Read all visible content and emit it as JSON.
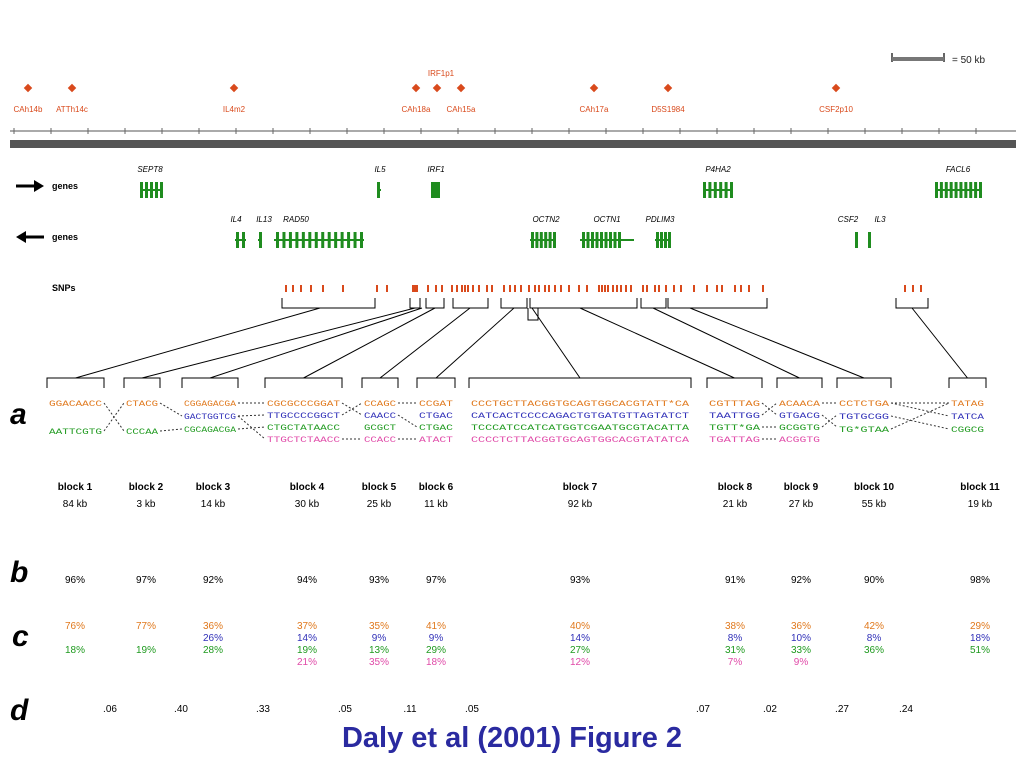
{
  "colors": {
    "marker": "#d94a1c",
    "gene": "#1f8c1f",
    "orange": "#e0781c",
    "blue": "#3030b8",
    "green": "#1f9a1f",
    "pink": "#e04aa8",
    "caption": "#2a2aa0"
  },
  "scale_label": "= 50 kb",
  "markers": [
    "CAh14b",
    "ATTh14c",
    "IL4m2",
    "IRF1p1",
    "CAh18a",
    "CAh15a",
    "CAh17a",
    "D5S1984",
    "CSF2p10"
  ],
  "track_labels": {
    "genes_forward": "genes",
    "genes_reverse": "genes",
    "snps": "SNPs"
  },
  "genes_forward": [
    "SEPT8",
    "IL5",
    "IRF1",
    "P4HA2",
    "FACL6"
  ],
  "genes_reverse": [
    "IL4",
    "IL13",
    "RAD50",
    "OCTN2",
    "OCTN1",
    "PDLIM3",
    "CSF2",
    "IL3"
  ],
  "panel_labels": [
    "a",
    "b",
    "c",
    "d"
  ],
  "blocks": [
    {
      "name": "block 1",
      "size": "84 kb",
      "b": "96%",
      "c": [
        "76%",
        "",
        "18%",
        ""
      ],
      "seqs": [
        [
          "GGACAACC",
          "orange"
        ],
        [
          "AATTCGTG",
          "green"
        ]
      ]
    },
    {
      "name": "block 2",
      "size": "3 kb",
      "b": "97%",
      "c": [
        "77%",
        "",
        "19%",
        ""
      ],
      "seqs": [
        [
          "CTACG",
          "orange"
        ],
        [
          "CCCAA",
          "green"
        ]
      ]
    },
    {
      "name": "block 3",
      "size": "14 kb",
      "b": "92%",
      "c": [
        "36%",
        "26%",
        "28%",
        ""
      ],
      "seqs": [
        [
          "CGGAGACGA",
          "orange"
        ],
        [
          "GACTGGTCG",
          "blue"
        ],
        [
          "CGCAGACGA",
          "green"
        ]
      ]
    },
    {
      "name": "block 4",
      "size": "30 kb",
      "b": "94%",
      "c": [
        "37%",
        "14%",
        "19%",
        "21%"
      ],
      "seqs": [
        [
          "CGCGCCCGGAT",
          "orange"
        ],
        [
          "TTGCCCCGGCT",
          "blue"
        ],
        [
          "CTGCTATAACC",
          "green"
        ],
        [
          "TTGCTCTAACC",
          "pink"
        ]
      ]
    },
    {
      "name": "block 5",
      "size": "25 kb",
      "b": "93%",
      "c": [
        "35%",
        "9%",
        "13%",
        "35%"
      ],
      "seqs": [
        [
          "CCAGC",
          "orange"
        ],
        [
          "CAACC",
          "blue"
        ],
        [
          "GCGCT",
          "green"
        ],
        [
          "CCACC",
          "pink"
        ]
      ]
    },
    {
      "name": "block 6",
      "size": "11 kb",
      "b": "97%",
      "c": [
        "41%",
        "9%",
        "29%",
        "18%"
      ],
      "seqs": [
        [
          "CCGAT",
          "orange"
        ],
        [
          "CTGAC",
          "blue"
        ],
        [
          "CTGAC",
          "green"
        ],
        [
          "ATACT",
          "pink"
        ]
      ]
    },
    {
      "name": "block 7",
      "size": "92 kb",
      "b": "93%",
      "c": [
        "40%",
        "14%",
        "27%",
        "12%"
      ],
      "seqs": [
        [
          "CCCTGCTTACGGTGCAGTGGCACGTATT*CA",
          "orange"
        ],
        [
          "CATCACTCCCCAGACTGTGATGTTAGTATCT",
          "blue"
        ],
        [
          "TCCCATCCATCATGGTCGAATGCGTACATTA",
          "green"
        ],
        [
          "CCCCTCTTACGGTGCAGTGGCACGTATATCA",
          "pink"
        ]
      ]
    },
    {
      "name": "block 8",
      "size": "21 kb",
      "b": "91%",
      "c": [
        "38%",
        "8%",
        "31%",
        "7%"
      ],
      "seqs": [
        [
          "CGTTTAG",
          "orange"
        ],
        [
          "TAATTGG",
          "blue"
        ],
        [
          "TGTT*GA",
          "green"
        ],
        [
          "TGATTAG",
          "pink"
        ]
      ]
    },
    {
      "name": "block 9",
      "size": "27 kb",
      "b": "92%",
      "c": [
        "36%",
        "10%",
        "33%",
        "9%"
      ],
      "seqs": [
        [
          "ACAACA",
          "orange"
        ],
        [
          "GTGACG",
          "blue"
        ],
        [
          "GCGGTG",
          "green"
        ],
        [
          "ACGGTG",
          "pink"
        ]
      ]
    },
    {
      "name": "block 10",
      "size": "55 kb",
      "b": "90%",
      "c": [
        "42%",
        "8%",
        "36%",
        ""
      ],
      "seqs": [
        [
          "CCTCTGA",
          "orange"
        ],
        [
          "TGTGCGG",
          "blue"
        ],
        [
          "TG*GTAA",
          "green"
        ]
      ]
    },
    {
      "name": "block 11",
      "size": "19 kb",
      "b": "98%",
      "c": [
        "29%",
        "18%",
        "51%",
        ""
      ],
      "seqs": [
        [
          "TATAG",
          "orange"
        ],
        [
          "TATCA",
          "blue"
        ],
        [
          "CGGCG",
          "green"
        ]
      ]
    }
  ],
  "d_values": [
    ".06",
    ".40",
    ".33",
    ".05",
    ".11",
    ".05",
    ".07",
    ".02",
    ".27",
    ".24"
  ],
  "caption": "Daly et al (2001) Figure 2"
}
